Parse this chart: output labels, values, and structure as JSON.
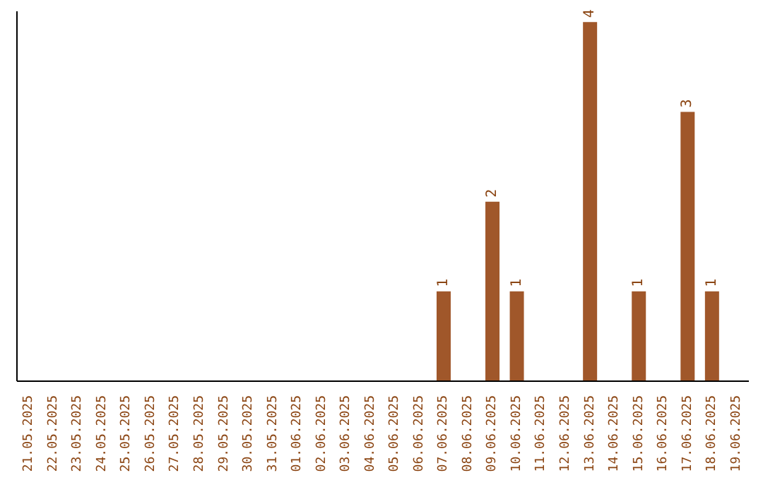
{
  "chart_data": {
    "type": "bar",
    "categories": [
      "21.05.2025",
      "22.05.2025",
      "23.05.2025",
      "24.05.2025",
      "25.05.2025",
      "26.05.2025",
      "27.05.2025",
      "28.05.2025",
      "29.05.2025",
      "30.05.2025",
      "31.05.2025",
      "01.06.2025",
      "02.06.2025",
      "03.06.2025",
      "04.06.2025",
      "05.06.2025",
      "06.06.2025",
      "07.06.2025",
      "08.06.2025",
      "09.06.2025",
      "10.06.2025",
      "11.06.2025",
      "12.06.2025",
      "13.06.2025",
      "14.06.2025",
      "15.06.2025",
      "16.06.2025",
      "17.06.2025",
      "18.06.2025",
      "19.06.2025"
    ],
    "values": [
      null,
      null,
      null,
      null,
      null,
      null,
      null,
      null,
      null,
      null,
      null,
      null,
      null,
      null,
      null,
      null,
      null,
      1,
      null,
      2,
      1,
      null,
      null,
      4,
      null,
      1,
      null,
      3,
      1,
      null
    ],
    "color": "#a0572a",
    "data_labels": true,
    "tick_labels": "x"
  }
}
